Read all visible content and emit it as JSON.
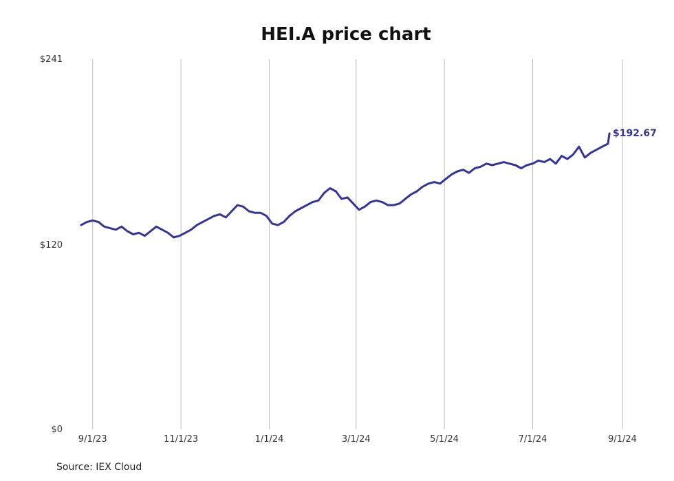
{
  "chart_data": {
    "type": "line",
    "title": "HEI.A price chart",
    "source": "Source: IEX Cloud",
    "line_color": "#33339a",
    "grid": "vertical",
    "ylim": [
      0,
      241
    ],
    "yticks": [
      {
        "value": 0,
        "label": "$0"
      },
      {
        "value": 120,
        "label": "$120"
      },
      {
        "value": 241,
        "label": "$241"
      }
    ],
    "xlim": [
      "2023-08-25",
      "2024-09-01"
    ],
    "xticks": [
      {
        "date": "2023-09-01",
        "label": "9/1/23"
      },
      {
        "date": "2023-11-01",
        "label": "11/1/23"
      },
      {
        "date": "2024-01-01",
        "label": "1/1/24"
      },
      {
        "date": "2024-03-01",
        "label": "3/1/24"
      },
      {
        "date": "2024-05-01",
        "label": "5/1/24"
      },
      {
        "date": "2024-07-01",
        "label": "7/1/24"
      },
      {
        "date": "2024-09-01",
        "label": "9/1/24"
      }
    ],
    "last_value_label": "$192.67",
    "series": [
      {
        "x": [
          "2023-08-24",
          "2023-08-28",
          "2023-09-01",
          "2023-09-05",
          "2023-09-09",
          "2023-09-13",
          "2023-09-17",
          "2023-09-21",
          "2023-09-25",
          "2023-09-29",
          "2023-10-03",
          "2023-10-07",
          "2023-10-11",
          "2023-10-15",
          "2023-10-19",
          "2023-10-23",
          "2023-10-27",
          "2023-10-31",
          "2023-11-04",
          "2023-11-08",
          "2023-11-12",
          "2023-11-16",
          "2023-11-20",
          "2023-11-24",
          "2023-11-28",
          "2023-12-02",
          "2023-12-06",
          "2023-12-10",
          "2023-12-14",
          "2023-12-18",
          "2023-12-22",
          "2023-12-26",
          "2023-12-30",
          "2024-01-03",
          "2024-01-07",
          "2024-01-11",
          "2024-01-15",
          "2024-01-19",
          "2024-01-23",
          "2024-01-27",
          "2024-01-31",
          "2024-02-04",
          "2024-02-08",
          "2024-02-12",
          "2024-02-16",
          "2024-02-20",
          "2024-02-24",
          "2024-02-28",
          "2024-03-03",
          "2024-03-07",
          "2024-03-11",
          "2024-03-15",
          "2024-03-19",
          "2024-03-23",
          "2024-03-27",
          "2024-03-31",
          "2024-04-04",
          "2024-04-08",
          "2024-04-12",
          "2024-04-16",
          "2024-04-20",
          "2024-04-24",
          "2024-04-28",
          "2024-05-02",
          "2024-05-06",
          "2024-05-10",
          "2024-05-14",
          "2024-05-18",
          "2024-05-22",
          "2024-05-26",
          "2024-05-30",
          "2024-06-03",
          "2024-06-07",
          "2024-06-11",
          "2024-06-15",
          "2024-06-19",
          "2024-06-23",
          "2024-06-27",
          "2024-07-01",
          "2024-07-05",
          "2024-07-09",
          "2024-07-13",
          "2024-07-17",
          "2024-07-21",
          "2024-07-25",
          "2024-07-29",
          "2024-08-02",
          "2024-08-06",
          "2024-08-10",
          "2024-08-14",
          "2024-08-18",
          "2024-08-22",
          "2024-08-23"
        ],
        "values": [
          133,
          135,
          136,
          135,
          132,
          131,
          130,
          132,
          129,
          127,
          128,
          126,
          129,
          132,
          130,
          128,
          125,
          126,
          128,
          130,
          133,
          135,
          137,
          139,
          140,
          138,
          142,
          146,
          145,
          142,
          141,
          141,
          139,
          134,
          133,
          135,
          139,
          142,
          144,
          146,
          148,
          149,
          154,
          157,
          155,
          150,
          151,
          147,
          143,
          145,
          148,
          149,
          148,
          146,
          146,
          147,
          150,
          153,
          155,
          158,
          160,
          161,
          160,
          163,
          166,
          168,
          169,
          167,
          170,
          171,
          173,
          172,
          173,
          174,
          173,
          172,
          170,
          172,
          173,
          175,
          174,
          176,
          173,
          178,
          176,
          179,
          184,
          177,
          180,
          182,
          184,
          186,
          192.67
        ]
      }
    ]
  }
}
